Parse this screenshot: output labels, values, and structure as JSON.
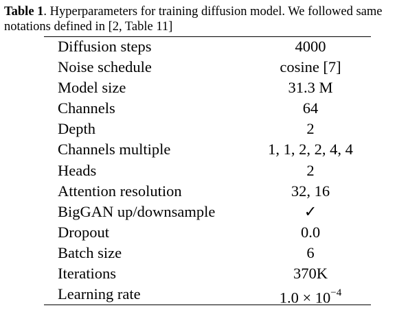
{
  "caption": {
    "label": "Table 1",
    "text": ". Hyperparameters for training diffusion model. We followed same notations defined in [2, Table 11]"
  },
  "rows": [
    {
      "param": "Diffusion steps",
      "value": "4000"
    },
    {
      "param": "Noise schedule",
      "value": "cosine [7]"
    },
    {
      "param": "Model size",
      "value": "31.3 M"
    },
    {
      "param": "Channels",
      "value": "64"
    },
    {
      "param": "Depth",
      "value": "2"
    },
    {
      "param": "Channels multiple",
      "value": "1, 1, 2, 2, 4, 4"
    },
    {
      "param": "Heads",
      "value": "2"
    },
    {
      "param": "Attention resolution",
      "value": "32, 16"
    },
    {
      "param": "BigGAN up/downsample",
      "value": "✓"
    },
    {
      "param": "Dropout",
      "value": "0.0"
    },
    {
      "param": "Batch size",
      "value": "6"
    },
    {
      "param": "Iterations",
      "value": "370K"
    },
    {
      "param": "Learning rate",
      "value": "1.0 × 10",
      "exponent": "−4"
    }
  ]
}
